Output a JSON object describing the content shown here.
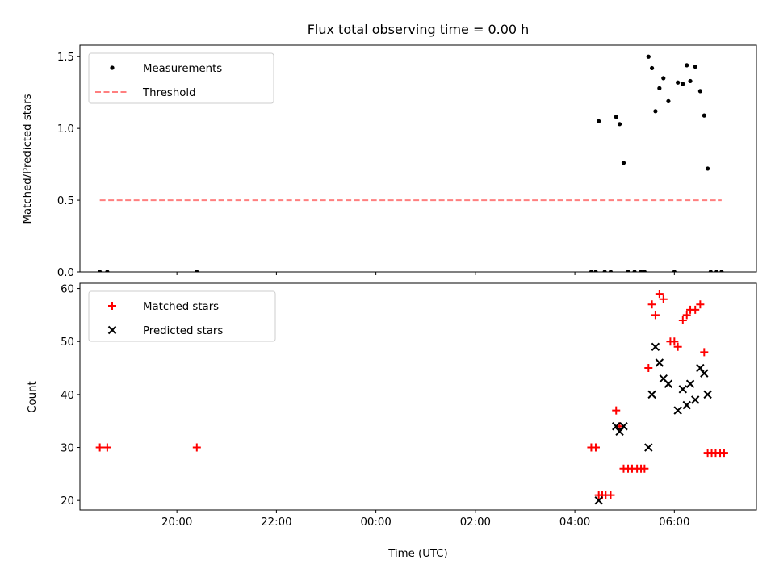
{
  "title": "Flux total observing time = 0.00 h",
  "colors": {
    "measurement": "#000000",
    "threshold": "#ff7f7f",
    "matched": "#ff0000",
    "predicted": "#000000"
  },
  "x_axis": {
    "label": "Time (UTC)",
    "type": "time-hours-since-midnight",
    "xlim": [
      -5.95,
      7.65
    ],
    "ticks": [
      {
        "value": -4,
        "label": "20:00"
      },
      {
        "value": -2,
        "label": "22:00"
      },
      {
        "value": 0,
        "label": "00:00"
      },
      {
        "value": 2,
        "label": "02:00"
      },
      {
        "value": 4,
        "label": "04:00"
      },
      {
        "value": 6,
        "label": "06:00"
      }
    ]
  },
  "chart_data": [
    {
      "type": "scatter",
      "title": "Flux total observing time = 0.00 h",
      "ylabel": "Matched/Predicted stars",
      "ylim": [
        0,
        1.58
      ],
      "yticks": [
        {
          "value": 0,
          "label": "0.0"
        },
        {
          "value": 0.5,
          "label": "0.5"
        },
        {
          "value": 1.0,
          "label": "1.0"
        },
        {
          "value": 1.5,
          "label": "1.5"
        }
      ],
      "legend": {
        "placement": "upper-left",
        "entries": [
          "Measurements",
          "Threshold"
        ]
      },
      "series": [
        {
          "name": "Measurements",
          "marker": "dot",
          "points": [
            [
              -5.55,
              0
            ],
            [
              -5.4,
              0
            ],
            [
              -3.6,
              0
            ],
            [
              4.33,
              0
            ],
            [
              4.42,
              0
            ],
            [
              4.6,
              0
            ],
            [
              4.72,
              0
            ],
            [
              5.07,
              0
            ],
            [
              5.2,
              0
            ],
            [
              5.33,
              0
            ],
            [
              5.4,
              0
            ],
            [
              6.0,
              0
            ],
            [
              6.73,
              0
            ],
            [
              6.85,
              0
            ],
            [
              6.95,
              0
            ],
            [
              4.48,
              1.05
            ],
            [
              4.83,
              1.08
            ],
            [
              4.9,
              1.03
            ],
            [
              4.98,
              0.76
            ],
            [
              5.48,
              1.5
            ],
            [
              5.55,
              1.42
            ],
            [
              5.62,
              1.12
            ],
            [
              5.7,
              1.28
            ],
            [
              5.78,
              1.35
            ],
            [
              5.88,
              1.19
            ],
            [
              6.07,
              1.32
            ],
            [
              6.17,
              1.31
            ],
            [
              6.25,
              1.44
            ],
            [
              6.32,
              1.33
            ],
            [
              6.42,
              1.43
            ],
            [
              6.52,
              1.26
            ],
            [
              6.6,
              1.09
            ],
            [
              6.67,
              0.72
            ]
          ]
        },
        {
          "name": "Threshold",
          "marker": "dashed-line",
          "points": [
            [
              -5.55,
              0.5
            ],
            [
              6.95,
              0.5
            ]
          ]
        }
      ]
    },
    {
      "type": "scatter",
      "ylabel": "Count",
      "xlabel": "Time (UTC)",
      "ylim": [
        18.2,
        61
      ],
      "yticks": [
        {
          "value": 20,
          "label": "20"
        },
        {
          "value": 30,
          "label": "30"
        },
        {
          "value": 40,
          "label": "40"
        },
        {
          "value": 50,
          "label": "50"
        },
        {
          "value": 60,
          "label": "60"
        }
      ],
      "legend": {
        "placement": "upper-left",
        "entries": [
          "Matched stars",
          "Predicted stars"
        ]
      },
      "series": [
        {
          "name": "Matched stars",
          "marker": "plus",
          "points": [
            [
              -5.55,
              30
            ],
            [
              -5.4,
              30
            ],
            [
              -3.6,
              30
            ],
            [
              4.33,
              30
            ],
            [
              4.42,
              30
            ],
            [
              4.48,
              21
            ],
            [
              4.55,
              21
            ],
            [
              4.62,
              21
            ],
            [
              4.72,
              21
            ],
            [
              4.83,
              37
            ],
            [
              4.9,
              34
            ],
            [
              4.98,
              26
            ],
            [
              5.07,
              26
            ],
            [
              5.15,
              26
            ],
            [
              5.25,
              26
            ],
            [
              5.33,
              26
            ],
            [
              5.4,
              26
            ],
            [
              5.48,
              45
            ],
            [
              5.55,
              57
            ],
            [
              5.62,
              55
            ],
            [
              5.7,
              59
            ],
            [
              5.78,
              58
            ],
            [
              5.92,
              50
            ],
            [
              6.0,
              50
            ],
            [
              6.07,
              49
            ],
            [
              6.17,
              54
            ],
            [
              6.25,
              55
            ],
            [
              6.32,
              56
            ],
            [
              6.42,
              56
            ],
            [
              6.52,
              57
            ],
            [
              6.6,
              48
            ],
            [
              6.67,
              29
            ],
            [
              6.75,
              29
            ],
            [
              6.83,
              29
            ],
            [
              6.92,
              29
            ],
            [
              7.0,
              29
            ]
          ]
        },
        {
          "name": "Predicted stars",
          "marker": "x",
          "points": [
            [
              4.48,
              20
            ],
            [
              4.83,
              34
            ],
            [
              4.9,
              33
            ],
            [
              4.98,
              34
            ],
            [
              5.48,
              30
            ],
            [
              5.55,
              40
            ],
            [
              5.62,
              49
            ],
            [
              5.7,
              46
            ],
            [
              5.78,
              43
            ],
            [
              5.88,
              42
            ],
            [
              6.07,
              37
            ],
            [
              6.17,
              41
            ],
            [
              6.25,
              38
            ],
            [
              6.32,
              42
            ],
            [
              6.42,
              39
            ],
            [
              6.52,
              45
            ],
            [
              6.6,
              44
            ],
            [
              6.67,
              40
            ]
          ]
        }
      ]
    }
  ]
}
